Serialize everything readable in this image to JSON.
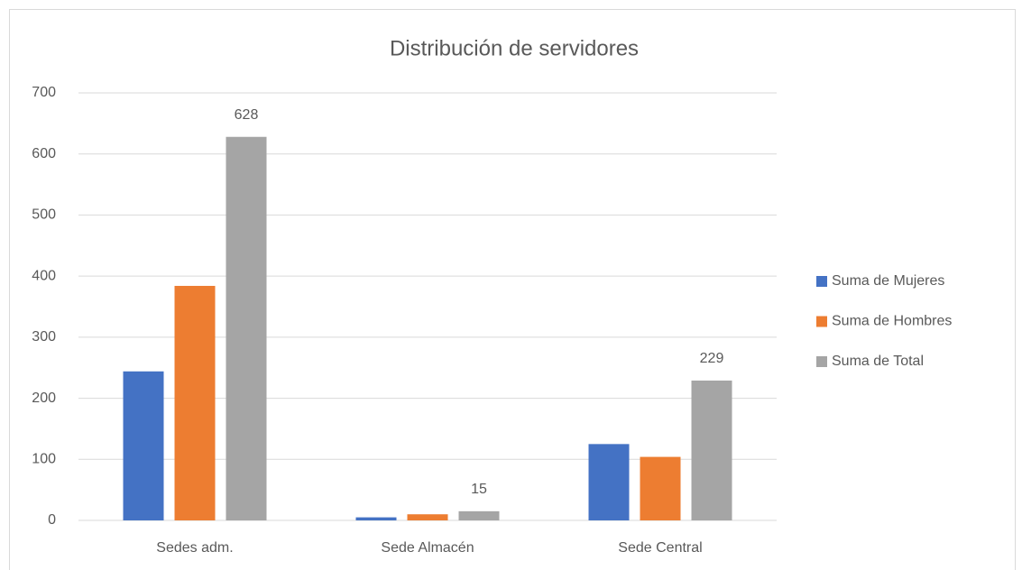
{
  "chart_data": {
    "type": "bar",
    "title": "Distribución de servidores",
    "categories": [
      "Sedes adm.",
      "Sede Almacén",
      "Sede Central"
    ],
    "series": [
      {
        "name": "Suma de Mujeres",
        "color": "#4472c4",
        "values": [
          244,
          5,
          125
        ],
        "show_labels": false
      },
      {
        "name": "Suma de Hombres",
        "color": "#ed7d31",
        "values": [
          384,
          10,
          104
        ],
        "show_labels": false
      },
      {
        "name": "Suma de Total",
        "color": "#a5a5a5",
        "values": [
          628,
          15,
          229
        ],
        "show_labels": true
      }
    ],
    "ylim": [
      0,
      700
    ],
    "yticks": [
      0,
      100,
      200,
      300,
      400,
      500,
      600,
      700
    ],
    "grid": true,
    "legend": "right"
  }
}
